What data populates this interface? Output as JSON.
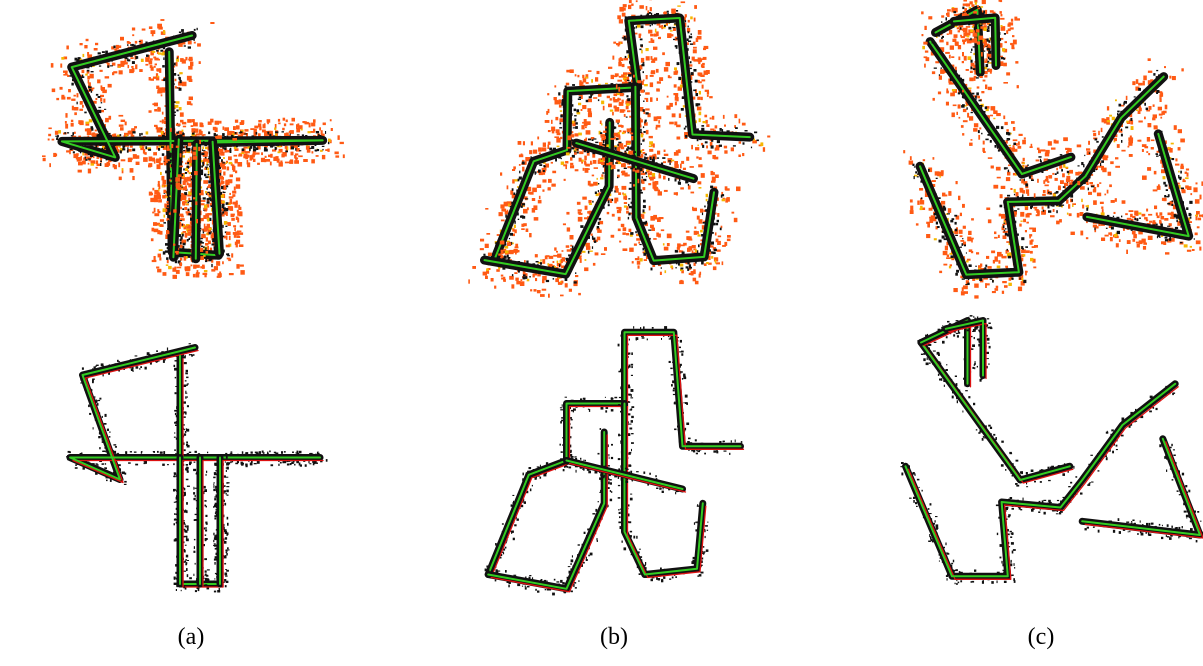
{
  "colors": {
    "scan": "#111111",
    "trajectory_a": "#33cc22",
    "trajectory_b": "#dd1111",
    "noise_orange": "#ff5a14",
    "noise_yellow": "#f5b700"
  },
  "labels": [
    "(a)",
    "(b)",
    "(c)"
  ],
  "maps": [
    {
      "label_index": 0,
      "name": "map-a",
      "path": [
        [
          0.44,
          0.13
        ],
        [
          0.44,
          0.96
        ],
        [
          0.6,
          0.96
        ],
        [
          0.6,
          0.5
        ],
        [
          1.0,
          0.5
        ],
        [
          0.0,
          0.5
        ],
        [
          0.2,
          0.58
        ],
        [
          0.05,
          0.2
        ],
        [
          0.5,
          0.1
        ]
      ],
      "legs": [
        [
          [
            0.44,
            0.5
          ],
          [
            0.44,
            0.96
          ]
        ],
        [
          [
            0.52,
            0.5
          ],
          [
            0.52,
            0.96
          ]
        ],
        [
          [
            0.6,
            0.5
          ],
          [
            0.6,
            0.96
          ]
        ]
      ]
    },
    {
      "label_index": 1,
      "name": "map-b",
      "path": [
        [
          0.08,
          0.9
        ],
        [
          0.22,
          0.55
        ],
        [
          0.35,
          0.5
        ],
        [
          0.35,
          0.3
        ],
        [
          0.55,
          0.3
        ],
        [
          0.55,
          0.05
        ],
        [
          0.72,
          0.05
        ],
        [
          0.75,
          0.45
        ],
        [
          0.95,
          0.45
        ]
      ],
      "legs": [
        [
          [
            0.08,
            0.9
          ],
          [
            0.35,
            0.95
          ],
          [
            0.48,
            0.65
          ],
          [
            0.48,
            0.4
          ]
        ],
        [
          [
            0.55,
            0.3
          ],
          [
            0.55,
            0.75
          ],
          [
            0.62,
            0.9
          ],
          [
            0.8,
            0.88
          ],
          [
            0.82,
            0.65
          ]
        ],
        [
          [
            0.35,
            0.5
          ],
          [
            0.75,
            0.6
          ]
        ]
      ]
    },
    {
      "label_index": 2,
      "name": "map-c",
      "path": [
        [
          0.05,
          0.55
        ],
        [
          0.2,
          0.95
        ],
        [
          0.38,
          0.95
        ],
        [
          0.36,
          0.68
        ],
        [
          0.55,
          0.7
        ],
        [
          0.62,
          0.6
        ],
        [
          0.75,
          0.4
        ],
        [
          0.92,
          0.25
        ]
      ],
      "legs": [
        [
          [
            0.1,
            0.1
          ],
          [
            0.42,
            0.6
          ],
          [
            0.58,
            0.55
          ]
        ],
        [
          [
            0.1,
            0.1
          ],
          [
            0.25,
            0.02
          ],
          [
            0.25,
            0.25
          ]
        ],
        [
          [
            0.18,
            0.05
          ],
          [
            0.3,
            0.02
          ],
          [
            0.3,
            0.22
          ]
        ],
        [
          [
            0.62,
            0.75
          ],
          [
            1.0,
            0.8
          ],
          [
            0.88,
            0.45
          ]
        ]
      ]
    }
  ]
}
